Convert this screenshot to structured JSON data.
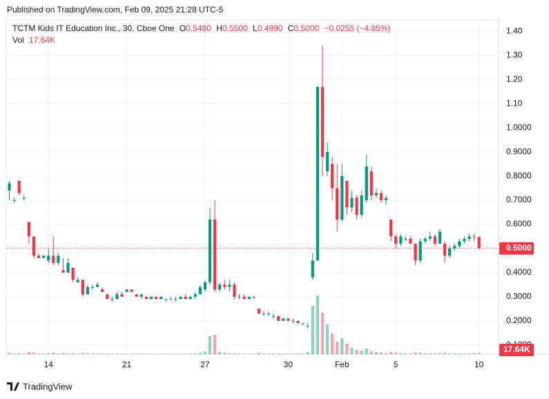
{
  "header": {
    "published": "Published on TradingView.com, Feb 09, 2025 21:28 UTC-5"
  },
  "footer": {
    "brand": "TradingView"
  },
  "chart_data": {
    "type": "candlestick",
    "title": "TCTM Kids IT Education Inc., 30, Cboe One",
    "legend_keys": {
      "open": "O",
      "high": "H",
      "low": "L",
      "close": "C",
      "volume": "Vol"
    },
    "last": {
      "open": 0.548,
      "high": 0.55,
      "low": 0.499,
      "close": 0.5,
      "change": -0.0255,
      "change_pct": -4.85
    },
    "last_labels": {
      "open": "0.5480",
      "high": "0.5500",
      "low": "0.4990",
      "close": "0.5000",
      "change": "−0.0255",
      "change_pct": "(−4.85%)"
    },
    "up_color": "#089981",
    "down_color": "#f23645",
    "xlim": [
      -0.5,
      100
    ],
    "xticks": [
      {
        "value": 8,
        "label": "14"
      },
      {
        "value": 24,
        "label": "21"
      },
      {
        "value": 40,
        "label": "27"
      },
      {
        "value": 57,
        "label": "30"
      },
      {
        "value": 68,
        "label": "Feb"
      },
      {
        "value": 79,
        "label": "5"
      },
      {
        "value": 96,
        "label": "10"
      }
    ],
    "ylim": [
      0.062,
      1.447
    ],
    "yticks": [
      {
        "value": 0.1,
        "label": "0.1000"
      },
      {
        "value": 0.2,
        "label": "0.2000"
      },
      {
        "value": 0.3,
        "label": "0.3000"
      },
      {
        "value": 0.4,
        "label": "0.4000"
      },
      {
        "value": 0.5,
        "label": "0.5000"
      },
      {
        "value": 0.6,
        "label": "0.6000"
      },
      {
        "value": 0.7,
        "label": "0.7000"
      },
      {
        "value": 0.8,
        "label": "0.8000"
      },
      {
        "value": 0.9,
        "label": "0.9000"
      },
      {
        "value": 1.0,
        "label": "1.0000"
      },
      {
        "value": 1.1,
        "label": "1.10"
      },
      {
        "value": 1.2,
        "label": "1.20"
      },
      {
        "value": 1.3,
        "label": "1.30"
      },
      {
        "value": 1.4,
        "label": "1.40"
      }
    ],
    "grid": true,
    "open": [
      0.74,
      0.7,
      0.78,
      0.71,
      0.61,
      0.55,
      0.47,
      0.46,
      0.45,
      0.47,
      0.44,
      0.41,
      0.4,
      0.42,
      0.36,
      0.37,
      0.31,
      0.34,
      0.34,
      0.33,
      0.31,
      0.29,
      0.29,
      0.31,
      0.32,
      0.33,
      0.31,
      0.3,
      0.3,
      0.29,
      0.3,
      0.29,
      0.29,
      0.29,
      0.29,
      0.29,
      0.3,
      0.29,
      0.3,
      0.31,
      0.33,
      0.36,
      0.62,
      0.33,
      0.35,
      0.34,
      0.35,
      0.3,
      0.3,
      0.29,
      0.3,
      0.25,
      0.23,
      0.23,
      0.22,
      0.22,
      0.2,
      0.21,
      0.2,
      0.2,
      0.19,
      0.18,
      0.38,
      0.45,
      1.17,
      0.82,
      0.85,
      0.75,
      0.62,
      0.78,
      0.67,
      0.71,
      0.64,
      0.7,
      0.82,
      0.72,
      0.73,
      0.7,
      0.62,
      0.55,
      0.52,
      0.54,
      0.54,
      0.52,
      0.45,
      0.53,
      0.54,
      0.55,
      0.52,
      0.52,
      0.47,
      0.5,
      0.51,
      0.53,
      0.54,
      0.55,
      0.548
    ],
    "high": [
      0.78,
      0.71,
      0.78,
      0.72,
      0.61,
      0.55,
      0.48,
      0.47,
      0.5,
      0.55,
      0.48,
      0.46,
      0.46,
      0.42,
      0.38,
      0.37,
      0.35,
      0.35,
      0.36,
      0.34,
      0.31,
      0.3,
      0.32,
      0.32,
      0.33,
      0.33,
      0.31,
      0.31,
      0.3,
      0.3,
      0.3,
      0.3,
      0.29,
      0.3,
      0.3,
      0.3,
      0.31,
      0.3,
      0.32,
      0.35,
      0.37,
      0.67,
      0.7,
      0.36,
      0.37,
      0.37,
      0.36,
      0.31,
      0.31,
      0.3,
      0.3,
      0.25,
      0.24,
      0.24,
      0.23,
      0.22,
      0.21,
      0.21,
      0.21,
      0.2,
      0.19,
      0.19,
      0.48,
      1.17,
      1.34,
      0.94,
      0.88,
      0.85,
      0.85,
      0.78,
      0.74,
      0.72,
      0.74,
      0.89,
      0.84,
      0.75,
      0.74,
      0.72,
      0.62,
      0.56,
      0.56,
      0.55,
      0.55,
      0.52,
      0.54,
      0.55,
      0.57,
      0.56,
      0.58,
      0.53,
      0.51,
      0.52,
      0.54,
      0.55,
      0.56,
      0.56,
      0.55
    ],
    "low": [
      0.7,
      0.69,
      0.72,
      0.7,
      0.52,
      0.46,
      0.46,
      0.46,
      0.44,
      0.43,
      0.43,
      0.4,
      0.4,
      0.36,
      0.36,
      0.3,
      0.31,
      0.33,
      0.34,
      0.32,
      0.29,
      0.28,
      0.29,
      0.3,
      0.32,
      0.32,
      0.3,
      0.29,
      0.29,
      0.29,
      0.29,
      0.29,
      0.28,
      0.29,
      0.28,
      0.29,
      0.29,
      0.29,
      0.29,
      0.31,
      0.32,
      0.35,
      0.32,
      0.32,
      0.33,
      0.32,
      0.29,
      0.29,
      0.29,
      0.29,
      0.29,
      0.23,
      0.22,
      0.22,
      0.21,
      0.2,
      0.2,
      0.2,
      0.19,
      0.19,
      0.18,
      0.17,
      0.37,
      0.45,
      0.8,
      0.8,
      0.7,
      0.57,
      0.61,
      0.64,
      0.65,
      0.62,
      0.63,
      0.69,
      0.7,
      0.71,
      0.69,
      0.68,
      0.53,
      0.5,
      0.51,
      0.53,
      0.52,
      0.43,
      0.44,
      0.52,
      0.53,
      0.51,
      0.52,
      0.44,
      0.46,
      0.49,
      0.5,
      0.52,
      0.53,
      0.53,
      0.499
    ],
    "close": [
      0.77,
      0.7,
      0.73,
      0.71,
      0.55,
      0.47,
      0.46,
      0.47,
      0.47,
      0.44,
      0.47,
      0.4,
      0.44,
      0.37,
      0.37,
      0.31,
      0.34,
      0.34,
      0.35,
      0.32,
      0.29,
      0.29,
      0.31,
      0.3,
      0.33,
      0.32,
      0.3,
      0.31,
      0.29,
      0.3,
      0.29,
      0.3,
      0.29,
      0.29,
      0.29,
      0.3,
      0.29,
      0.3,
      0.31,
      0.34,
      0.36,
      0.62,
      0.33,
      0.35,
      0.34,
      0.35,
      0.3,
      0.3,
      0.29,
      0.3,
      0.3,
      0.23,
      0.23,
      0.23,
      0.22,
      0.2,
      0.21,
      0.2,
      0.2,
      0.19,
      0.19,
      0.18,
      0.45,
      1.17,
      0.88,
      0.9,
      0.75,
      0.62,
      0.8,
      0.67,
      0.71,
      0.64,
      0.72,
      0.84,
      0.72,
      0.73,
      0.7,
      0.71,
      0.55,
      0.52,
      0.55,
      0.54,
      0.52,
      0.45,
      0.53,
      0.54,
      0.55,
      0.52,
      0.57,
      0.47,
      0.5,
      0.51,
      0.53,
      0.54,
      0.55,
      0.548,
      0.5
    ],
    "volume": [
      20000,
      8000,
      15000,
      6000,
      30000,
      25000,
      10000,
      8000,
      15000,
      20000,
      12000,
      18000,
      10000,
      15000,
      8000,
      20000,
      12000,
      8000,
      9000,
      10000,
      8000,
      6000,
      7000,
      6000,
      5000,
      6000,
      5000,
      6000,
      5000,
      4000,
      5000,
      4000,
      5000,
      4000,
      5000,
      4000,
      5000,
      6000,
      10000,
      20000,
      40000,
      260000,
      280000,
      30000,
      20000,
      15000,
      12000,
      8000,
      6000,
      5000,
      5000,
      20000,
      10000,
      8000,
      8000,
      10000,
      8000,
      7000,
      8000,
      9000,
      10000,
      30000,
      700000,
      850000,
      600000,
      430000,
      300000,
      180000,
      230000,
      150000,
      90000,
      60000,
      50000,
      80000,
      40000,
      30000,
      20000,
      15000,
      30000,
      20000,
      15000,
      12000,
      10000,
      25000,
      20000,
      12000,
      10000,
      12000,
      15000,
      20000,
      12000,
      10000,
      10000,
      9000,
      10000,
      12000,
      17640
    ],
    "vlim": [
      0,
      1000000
    ],
    "volume_label": "17.64K"
  }
}
